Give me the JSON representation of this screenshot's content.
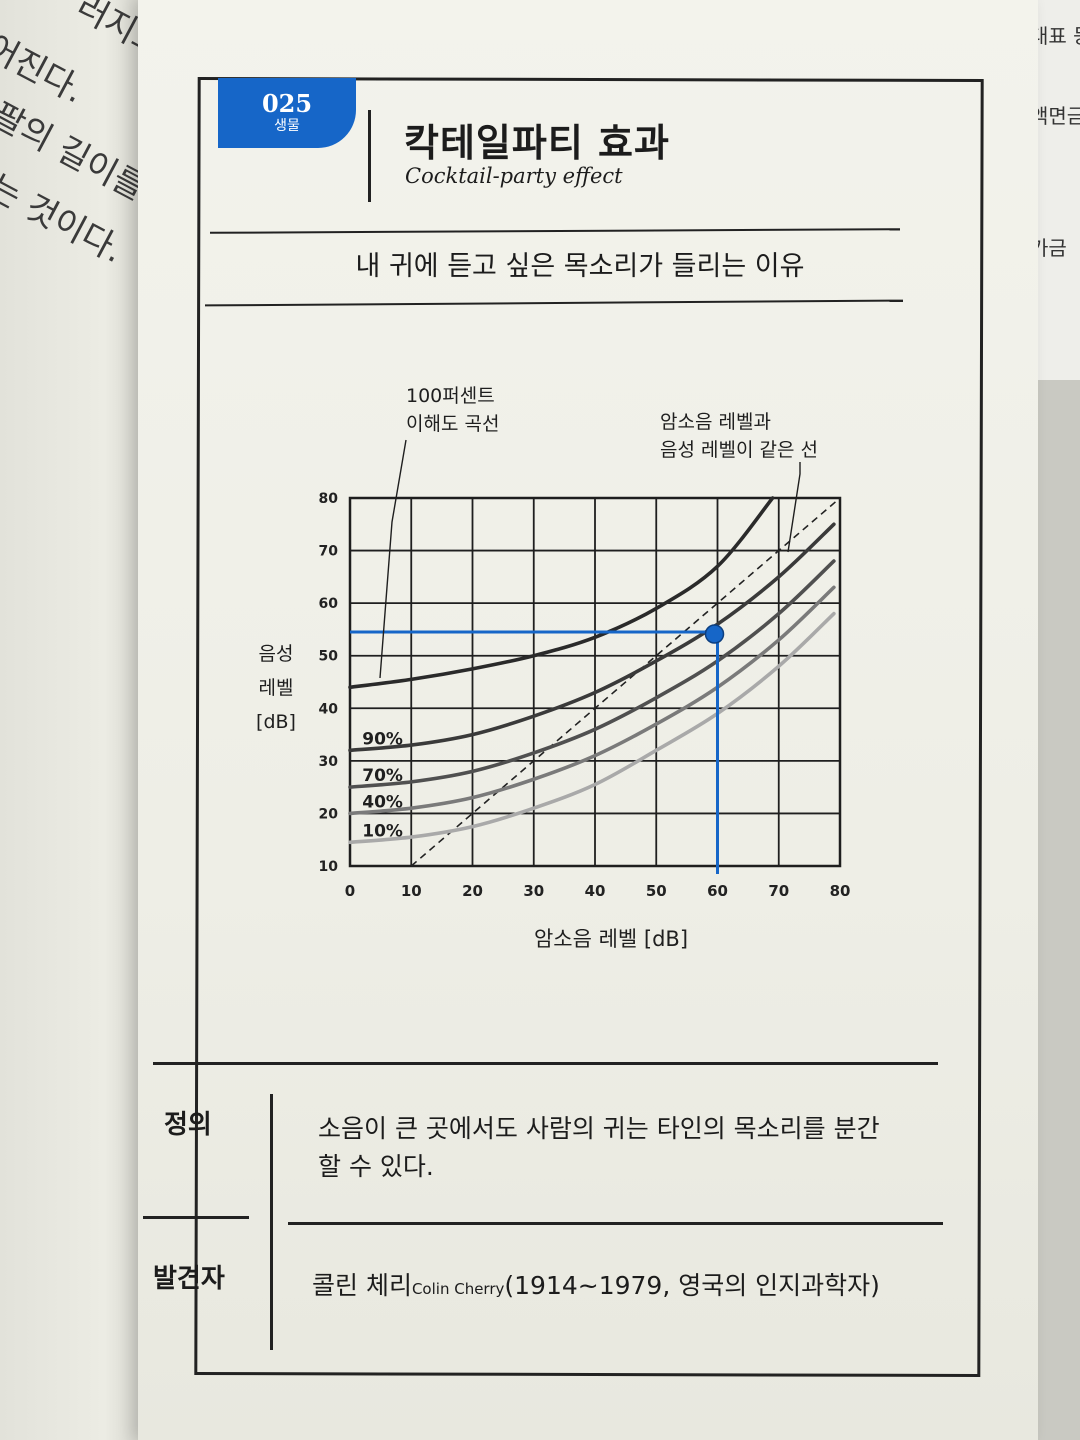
{
  "left_page": {
    "lines": [
      "러지고, 반대",
      "어진다.",
      "팔의 길이를 조절",
      "는 것이다."
    ]
  },
  "right_page": {
    "lines": [
      "대표 등",
      "액면금",
      "가금"
    ]
  },
  "header": {
    "number": "025",
    "category": "생물",
    "title_ko": "칵테일파티 효과",
    "title_en": "Cocktail-party effect"
  },
  "subtitle": "내 귀에 듣고 싶은 목소리가 들리는 이유",
  "chart_data": {
    "type": "line",
    "title": "",
    "xlabel": "암소음 레벨 [dB]",
    "ylabel": "음성 레벨 [dB]",
    "xlim": [
      0,
      80
    ],
    "ylim": [
      10,
      80
    ],
    "x_ticks": [
      0,
      10,
      20,
      30,
      40,
      50,
      60,
      70,
      80
    ],
    "y_ticks": [
      10,
      20,
      30,
      40,
      50,
      60,
      70,
      80
    ],
    "grid": true,
    "series": [
      {
        "name": "100%",
        "color": "#2a2a2a",
        "x": [
          0,
          10,
          20,
          30,
          40,
          50,
          60,
          69
        ],
        "y": [
          44,
          45.5,
          47.5,
          50,
          53.5,
          59,
          67,
          80
        ]
      },
      {
        "name": "90%",
        "color": "#3a3a3a",
        "x": [
          0,
          10,
          20,
          30,
          40,
          50,
          60,
          70,
          79
        ],
        "y": [
          32,
          33,
          35,
          38.5,
          43,
          49,
          56,
          65,
          75
        ]
      },
      {
        "name": "70%",
        "color": "#505050",
        "x": [
          0,
          10,
          20,
          30,
          40,
          50,
          60,
          70,
          79
        ],
        "y": [
          25,
          26,
          28,
          31.5,
          36,
          42,
          49,
          58,
          68
        ]
      },
      {
        "name": "40%",
        "color": "#7a7a7a",
        "x": [
          0,
          10,
          20,
          30,
          40,
          50,
          60,
          70,
          79
        ],
        "y": [
          20,
          21,
          23,
          26.5,
          31,
          37,
          44,
          53,
          63
        ]
      },
      {
        "name": "10%",
        "color": "#a9a9a9",
        "x": [
          0,
          10,
          20,
          30,
          40,
          50,
          60,
          70,
          79
        ],
        "y": [
          14.5,
          15.5,
          17.5,
          21,
          25.5,
          32,
          39,
          48,
          58
        ]
      }
    ],
    "reference_line": {
      "label": "암소음 레벨과 음성 레벨이 같은 선",
      "x": [
        10,
        80
      ],
      "y": [
        10,
        80
      ]
    },
    "highlight": {
      "x": 60,
      "y": 54.5,
      "color": "#1666c8"
    },
    "annotations": {
      "curve_100": [
        "100퍼센트",
        "이해도 곡선"
      ],
      "equal_line": [
        "암소음 레벨과",
        "음성 레벨이 같은 선"
      ],
      "ylabel_lines": [
        "음성",
        "레벨",
        "[dB]"
      ]
    }
  },
  "definition": {
    "label": "정의",
    "lines": [
      "소음이 큰 곳에서도 사람의 귀는 타인의 목소리를 분간",
      "할 수 있다."
    ]
  },
  "discoverer": {
    "label": "발견자",
    "name": "콜린 체리",
    "name_en": "Colin Cherry",
    "detail": "(1914~1979, 영국의 인지과학자)"
  }
}
